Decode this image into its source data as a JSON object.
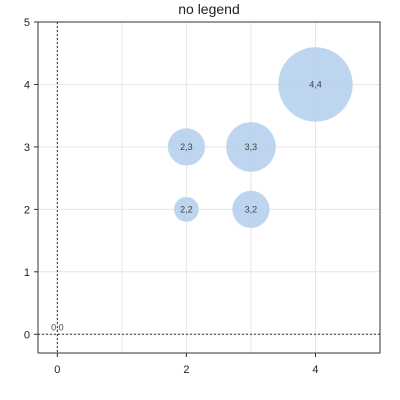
{
  "chart_data": {
    "type": "scatter",
    "title": "no legend",
    "xlabel": "",
    "ylabel": "",
    "xlim": [
      -0.3,
      5
    ],
    "ylim": [
      -0.3,
      5
    ],
    "xticks": [
      "0",
      "2",
      "4"
    ],
    "yticks": [
      "0",
      "1",
      "2",
      "3",
      "4",
      "5"
    ],
    "grid": true,
    "legend": "none",
    "bubble_color": "#b9d3ee",
    "points": [
      {
        "x": 0,
        "y": 0,
        "size": 0,
        "label": "0,0"
      },
      {
        "x": 2,
        "y": 2,
        "size": 2,
        "label": "2,2"
      },
      {
        "x": 2,
        "y": 3,
        "size": 3,
        "label": "2,3"
      },
      {
        "x": 3,
        "y": 2,
        "size": 3,
        "label": "3,2"
      },
      {
        "x": 3,
        "y": 3,
        "size": 4,
        "label": "3,3"
      },
      {
        "x": 4,
        "y": 4,
        "size": 6,
        "label": "4,4"
      }
    ]
  }
}
